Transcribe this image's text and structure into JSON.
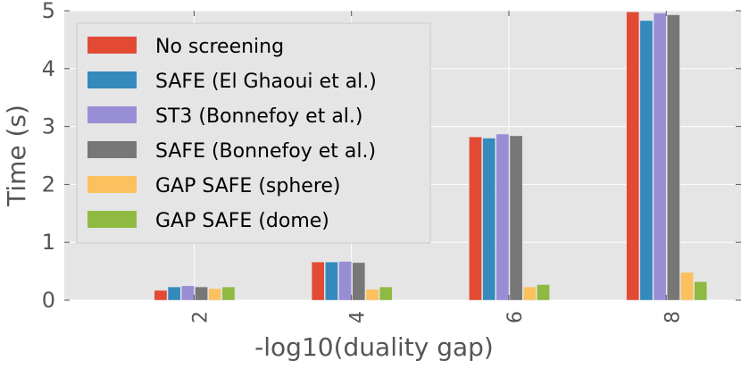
{
  "chart_data": {
    "type": "bar",
    "title": "",
    "xlabel": "-log10(duality gap)",
    "ylabel": "Time (s)",
    "categories": [
      "2",
      "4",
      "6",
      "8"
    ],
    "yticks": [
      "0",
      "1",
      "2",
      "3",
      "4",
      "5"
    ],
    "ylim": [
      0,
      5
    ],
    "grid": true,
    "legend_position": "top-left",
    "series": [
      {
        "name": "No screening",
        "color": "#e24a33",
        "values": [
          0.17,
          0.66,
          2.82,
          4.98
        ]
      },
      {
        "name": "SAFE (El Ghaoui et al.)",
        "color": "#348abd",
        "values": [
          0.23,
          0.66,
          2.8,
          4.83
        ]
      },
      {
        "name": "ST3 (Bonnefoy et al.)",
        "color": "#988ed5",
        "values": [
          0.25,
          0.67,
          2.87,
          4.96
        ]
      },
      {
        "name": "SAFE (Bonnefoy et al.)",
        "color": "#777777",
        "values": [
          0.23,
          0.65,
          2.84,
          4.93
        ]
      },
      {
        "name": "GAP SAFE (sphere)",
        "color": "#fbc15e",
        "values": [
          0.2,
          0.19,
          0.23,
          0.48
        ]
      },
      {
        "name": "GAP SAFE (dome)",
        "color": "#8eba42",
        "values": [
          0.23,
          0.23,
          0.27,
          0.32
        ]
      }
    ]
  }
}
